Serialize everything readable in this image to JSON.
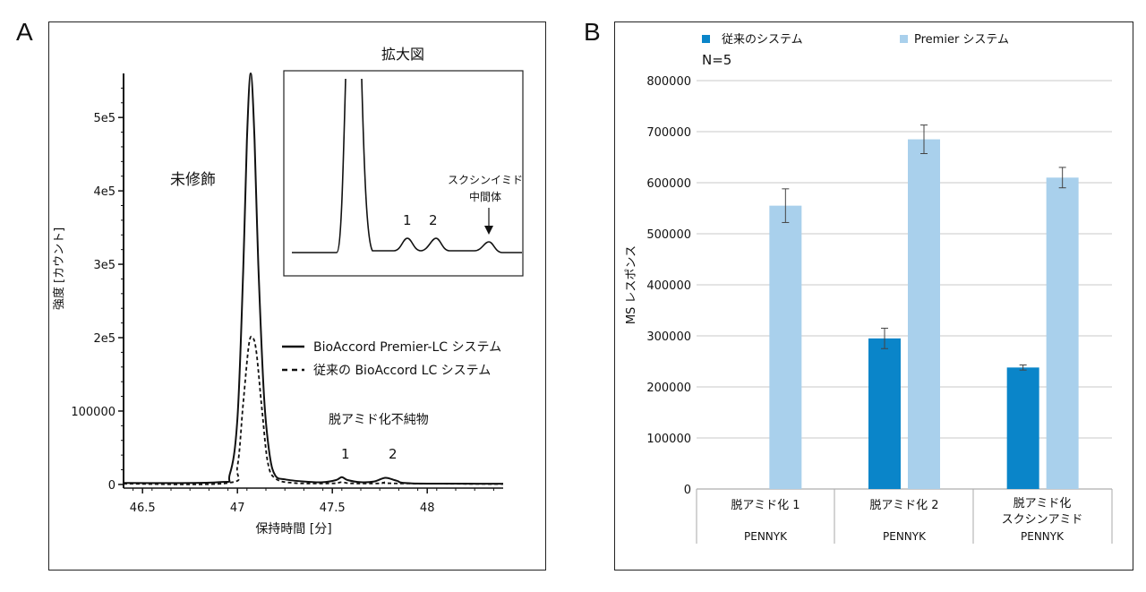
{
  "panels": {
    "a_letter": "A",
    "b_letter": "B"
  },
  "chart_data": [
    {
      "type": "line",
      "xlabel": "保持時間 [分]",
      "ylabel": "強度 [カウント]",
      "xlim": [
        46.4,
        48.4
      ],
      "ylim": [
        -5000,
        560000
      ],
      "x_ticks": [
        "46.5",
        "47",
        "47.5",
        "48"
      ],
      "y_ticks": [
        "0",
        "100000",
        "2e5",
        "3e5",
        "4e5",
        "5e5"
      ],
      "series": [
        {
          "name": "BioAccord Premier-LC システム",
          "style": "solid",
          "x": [
            46.4,
            46.9,
            46.96,
            47.0,
            47.03,
            47.05,
            47.07,
            47.09,
            47.11,
            47.14,
            47.17,
            47.2,
            47.25,
            47.35,
            47.45,
            47.52,
            47.55,
            47.58,
            47.65,
            47.72,
            47.78,
            47.84,
            47.92,
            48.4
          ],
          "y": [
            2000,
            3000,
            14000,
            90000,
            290000,
            470000,
            560000,
            470000,
            300000,
            120000,
            40000,
            12000,
            7000,
            4000,
            3000,
            6000,
            10000,
            6000,
            3000,
            4000,
            9000,
            5000,
            1500,
            1000
          ]
        },
        {
          "name": "従来の BioAccord LC システム",
          "style": "dashed",
          "x": [
            46.4,
            46.95,
            47.0,
            47.03,
            47.06,
            47.08,
            47.1,
            47.13,
            47.16,
            47.2,
            47.3,
            47.5,
            47.55,
            47.6,
            47.75,
            47.78,
            47.82,
            48.4
          ],
          "y": [
            1000,
            2000,
            25000,
            110000,
            190000,
            200000,
            180000,
            100000,
            30000,
            8000,
            2000,
            1500,
            3000,
            1500,
            1500,
            3000,
            1500,
            500
          ]
        }
      ],
      "annotations": {
        "unmodified": "未修飾",
        "impurities": "脱アミド化不純物",
        "peak1": "1",
        "peak2": "2"
      },
      "inset": {
        "title": "拡大図",
        "peak1": "1",
        "peak2": "2",
        "succinimide_line1": "スクシンイミド",
        "succinimide_line2": "中間体"
      }
    },
    {
      "type": "bar",
      "note": "N=5",
      "ylabel": "MS レスポンス",
      "ylim": [
        0,
        800000
      ],
      "y_ticks": [
        "0",
        "100000",
        "200000",
        "300000",
        "400000",
        "500000",
        "600000",
        "700000",
        "800000"
      ],
      "grid": true,
      "legend_position": "top",
      "categories": [
        {
          "line1": "脱アミド化 1",
          "line2": "",
          "peptide": "PENNYK"
        },
        {
          "line1": "脱アミド化 2",
          "line2": "",
          "peptide": "PENNYK"
        },
        {
          "line1": "脱アミド化",
          "line2": "スクシンアミド",
          "peptide": "PENNYK"
        }
      ],
      "series": [
        {
          "name": "従来のシステム",
          "color": "#0a85c9",
          "values": [
            null,
            295000,
            238000
          ],
          "errors": [
            null,
            20000,
            5000
          ]
        },
        {
          "name": "Premier システム",
          "color": "#a9d0ec",
          "values": [
            555000,
            685000,
            610000
          ],
          "errors": [
            33000,
            28000,
            20000
          ]
        }
      ]
    }
  ]
}
